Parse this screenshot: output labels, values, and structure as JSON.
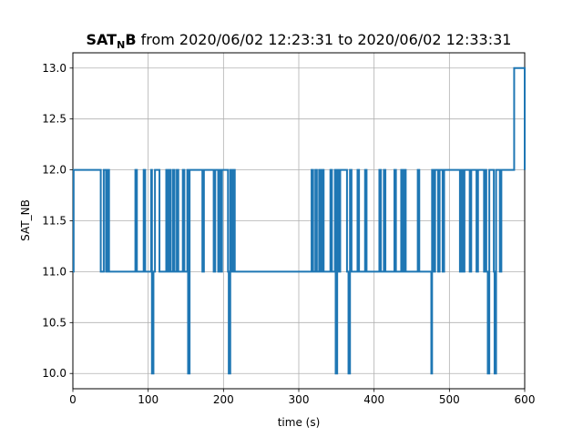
{
  "chart_data": {
    "type": "line",
    "title": {
      "symbol_main": "SAT",
      "symbol_sub": "N",
      "symbol_tail": "B",
      "rest": " from 2020/06/02 12:23:31 to 2020/06/02 12:33:31"
    },
    "xlabel": "time (s)",
    "ylabel": "SAT_NB",
    "xlim": [
      0,
      600
    ],
    "ylim": [
      9.85,
      13.15
    ],
    "xticks": [
      0,
      100,
      200,
      300,
      400,
      500,
      600
    ],
    "yticks": [
      10.0,
      10.5,
      11.0,
      11.5,
      12.0,
      12.5,
      13.0
    ],
    "xtick_labels": [
      "0",
      "100",
      "200",
      "300",
      "400",
      "500",
      "600"
    ],
    "ytick_labels": [
      "10.0",
      "10.5",
      "11.0",
      "11.5",
      "12.0",
      "12.5",
      "13.0"
    ],
    "grid": true,
    "line_color": "#1f77b4",
    "series": [
      {
        "step": "post",
        "x": [
          0,
          1,
          3,
          37,
          41,
          44,
          46,
          48,
          83,
          85,
          94,
          96,
          104,
          105,
          107,
          109,
          113,
          115,
          124,
          126,
          128,
          130,
          133,
          135,
          138,
          140,
          146,
          148,
          152,
          153,
          155,
          172,
          174,
          187,
          189,
          193,
          194,
          196,
          198,
          206,
          207,
          209,
          211,
          213,
          215,
          317,
          319,
          322,
          324,
          327,
          329,
          331,
          333,
          342,
          344,
          348,
          349,
          351,
          353,
          355,
          364,
          366,
          368,
          370,
          378,
          380,
          388,
          390,
          407,
          409,
          413,
          415,
          427,
          429,
          436,
          438,
          440,
          442,
          458,
          460,
          476,
          477,
          479,
          481,
          485,
          487,
          491,
          493,
          514,
          516,
          518,
          520,
          527,
          529,
          536,
          538,
          546,
          547,
          549,
          551,
          553,
          559,
          560,
          562,
          567,
          569,
          585,
          586,
          596,
          597,
          600
        ],
        "y": [
          11,
          12,
          12,
          11,
          12,
          11,
          12,
          11,
          12,
          11,
          12,
          11,
          12,
          10,
          11,
          12,
          12,
          11,
          12,
          11,
          12,
          11,
          12,
          11,
          12,
          11,
          12,
          11,
          12,
          10,
          12,
          11,
          12,
          11,
          12,
          11,
          12,
          11,
          12,
          11,
          10,
          12,
          11,
          12,
          11,
          12,
          11,
          12,
          11,
          12,
          11,
          12,
          11,
          12,
          11,
          12,
          10,
          12,
          11,
          12,
          11,
          10,
          12,
          11,
          12,
          11,
          12,
          11,
          12,
          11,
          12,
          11,
          12,
          11,
          12,
          11,
          12,
          11,
          12,
          11,
          10,
          12,
          11,
          12,
          11,
          12,
          11,
          12,
          11,
          12,
          11,
          12,
          11,
          12,
          11,
          12,
          11,
          12,
          11,
          10,
          12,
          11,
          10,
          12,
          11,
          12,
          12,
          13,
          13,
          13,
          12
        ]
      }
    ]
  }
}
